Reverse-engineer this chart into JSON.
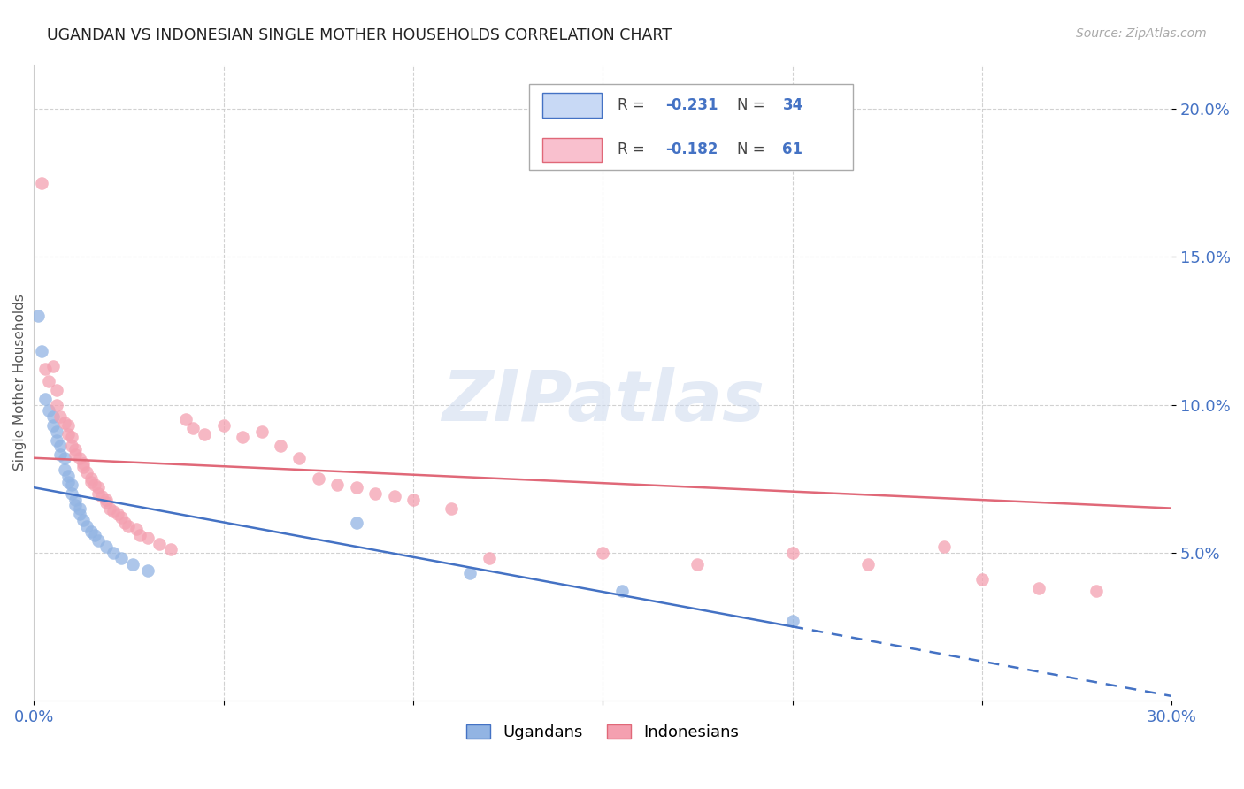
{
  "title": "UGANDAN VS INDONESIAN SINGLE MOTHER HOUSEHOLDS CORRELATION CHART",
  "source": "Source: ZipAtlas.com",
  "ylabel": "Single Mother Households",
  "ugandan_color": "#92b4e3",
  "indonesian_color": "#f4a0b0",
  "ugandan_line_color": "#4472c4",
  "indonesian_line_color": "#e06878",
  "watermark": "ZIPatlas",
  "xlim": [
    0.0,
    0.3
  ],
  "ylim": [
    0.0,
    0.215
  ],
  "ugandan_line": [
    0.0,
    0.072,
    0.2,
    0.025
  ],
  "indonesian_line": [
    0.0,
    0.082,
    0.3,
    0.065
  ],
  "ugandan_line_solid_end": 0.2,
  "ugandan_points": [
    [
      0.001,
      0.13
    ],
    [
      0.002,
      0.118
    ],
    [
      0.003,
      0.102
    ],
    [
      0.004,
      0.098
    ],
    [
      0.005,
      0.096
    ],
    [
      0.005,
      0.093
    ],
    [
      0.006,
      0.091
    ],
    [
      0.006,
      0.088
    ],
    [
      0.007,
      0.086
    ],
    [
      0.007,
      0.083
    ],
    [
      0.008,
      0.082
    ],
    [
      0.008,
      0.078
    ],
    [
      0.009,
      0.076
    ],
    [
      0.009,
      0.074
    ],
    [
      0.01,
      0.073
    ],
    [
      0.01,
      0.07
    ],
    [
      0.011,
      0.068
    ],
    [
      0.011,
      0.066
    ],
    [
      0.012,
      0.065
    ],
    [
      0.012,
      0.063
    ],
    [
      0.013,
      0.061
    ],
    [
      0.014,
      0.059
    ],
    [
      0.015,
      0.057
    ],
    [
      0.016,
      0.056
    ],
    [
      0.017,
      0.054
    ],
    [
      0.019,
      0.052
    ],
    [
      0.021,
      0.05
    ],
    [
      0.023,
      0.048
    ],
    [
      0.026,
      0.046
    ],
    [
      0.03,
      0.044
    ],
    [
      0.085,
      0.06
    ],
    [
      0.115,
      0.043
    ],
    [
      0.155,
      0.037
    ],
    [
      0.2,
      0.027
    ]
  ],
  "indonesian_points": [
    [
      0.002,
      0.175
    ],
    [
      0.003,
      0.112
    ],
    [
      0.004,
      0.108
    ],
    [
      0.005,
      0.113
    ],
    [
      0.006,
      0.105
    ],
    [
      0.006,
      0.1
    ],
    [
      0.007,
      0.096
    ],
    [
      0.008,
      0.094
    ],
    [
      0.009,
      0.093
    ],
    [
      0.009,
      0.09
    ],
    [
      0.01,
      0.089
    ],
    [
      0.01,
      0.086
    ],
    [
      0.011,
      0.085
    ],
    [
      0.011,
      0.083
    ],
    [
      0.012,
      0.082
    ],
    [
      0.013,
      0.08
    ],
    [
      0.013,
      0.079
    ],
    [
      0.014,
      0.077
    ],
    [
      0.015,
      0.075
    ],
    [
      0.015,
      0.074
    ],
    [
      0.016,
      0.073
    ],
    [
      0.017,
      0.072
    ],
    [
      0.017,
      0.07
    ],
    [
      0.018,
      0.069
    ],
    [
      0.019,
      0.068
    ],
    [
      0.019,
      0.067
    ],
    [
      0.02,
      0.065
    ],
    [
      0.021,
      0.064
    ],
    [
      0.022,
      0.063
    ],
    [
      0.023,
      0.062
    ],
    [
      0.024,
      0.06
    ],
    [
      0.025,
      0.059
    ],
    [
      0.027,
      0.058
    ],
    [
      0.028,
      0.056
    ],
    [
      0.03,
      0.055
    ],
    [
      0.033,
      0.053
    ],
    [
      0.036,
      0.051
    ],
    [
      0.04,
      0.095
    ],
    [
      0.042,
      0.092
    ],
    [
      0.045,
      0.09
    ],
    [
      0.05,
      0.093
    ],
    [
      0.055,
      0.089
    ],
    [
      0.06,
      0.091
    ],
    [
      0.065,
      0.086
    ],
    [
      0.07,
      0.082
    ],
    [
      0.075,
      0.075
    ],
    [
      0.08,
      0.073
    ],
    [
      0.085,
      0.072
    ],
    [
      0.09,
      0.07
    ],
    [
      0.095,
      0.069
    ],
    [
      0.1,
      0.068
    ],
    [
      0.11,
      0.065
    ],
    [
      0.12,
      0.048
    ],
    [
      0.15,
      0.05
    ],
    [
      0.175,
      0.046
    ],
    [
      0.2,
      0.05
    ],
    [
      0.22,
      0.046
    ],
    [
      0.24,
      0.052
    ],
    [
      0.25,
      0.041
    ],
    [
      0.265,
      0.038
    ],
    [
      0.28,
      0.037
    ]
  ]
}
